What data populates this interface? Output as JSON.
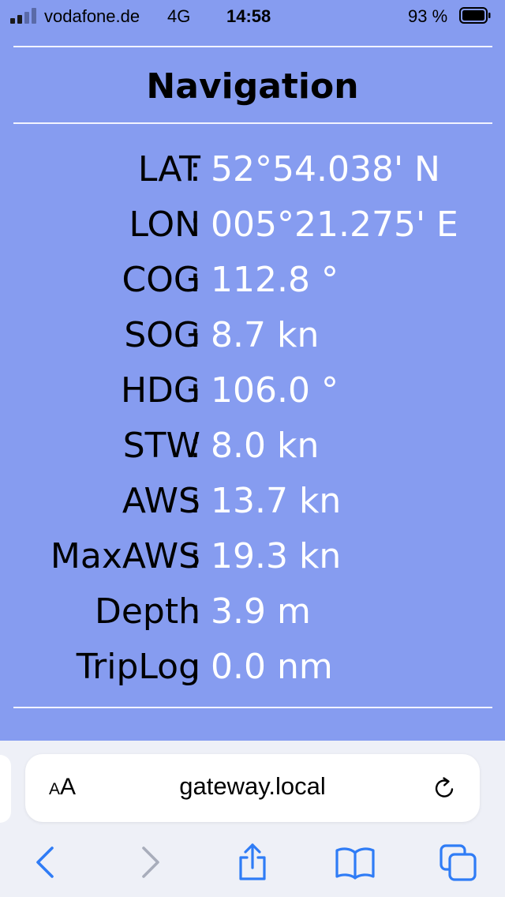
{
  "status_bar": {
    "carrier": "vodafone.de",
    "network": "4G",
    "time": "14:58",
    "battery_percent": "93 %",
    "battery_level": 0.93,
    "signal_bars": 2,
    "signal_total": 4
  },
  "page": {
    "title": "Navigation",
    "colon": ":",
    "rows": [
      {
        "label": "LAT",
        "value": "52°54.038' N"
      },
      {
        "label": "LON",
        "value": "005°21.275' E"
      },
      {
        "label": "COG",
        "value": "112.8 °"
      },
      {
        "label": "SOG",
        "value": "8.7 kn"
      },
      {
        "label": "HDG",
        "value": "106.0 °"
      },
      {
        "label": "STW",
        "value": "8.0 kn"
      },
      {
        "label": "AWS",
        "value": "13.7 kn"
      },
      {
        "label": "MaxAWS",
        "value": "19.3 kn"
      },
      {
        "label": "Depth",
        "value": "3.9 m"
      },
      {
        "label": "TripLog",
        "value": "0.0 nm"
      }
    ]
  },
  "browser": {
    "url": "gateway.local",
    "text_size_small": "A",
    "text_size_big": "A",
    "icons": [
      "back-icon",
      "forward-icon",
      "share-icon",
      "bookmarks-icon",
      "tabs-icon",
      "reload-icon"
    ]
  },
  "colors": {
    "page_background": "#869cf0",
    "value_text": "#ffffff",
    "label_text": "#000000",
    "toolbar_accent": "#2f7cf6",
    "toolbar_disabled": "#a8adbb"
  }
}
